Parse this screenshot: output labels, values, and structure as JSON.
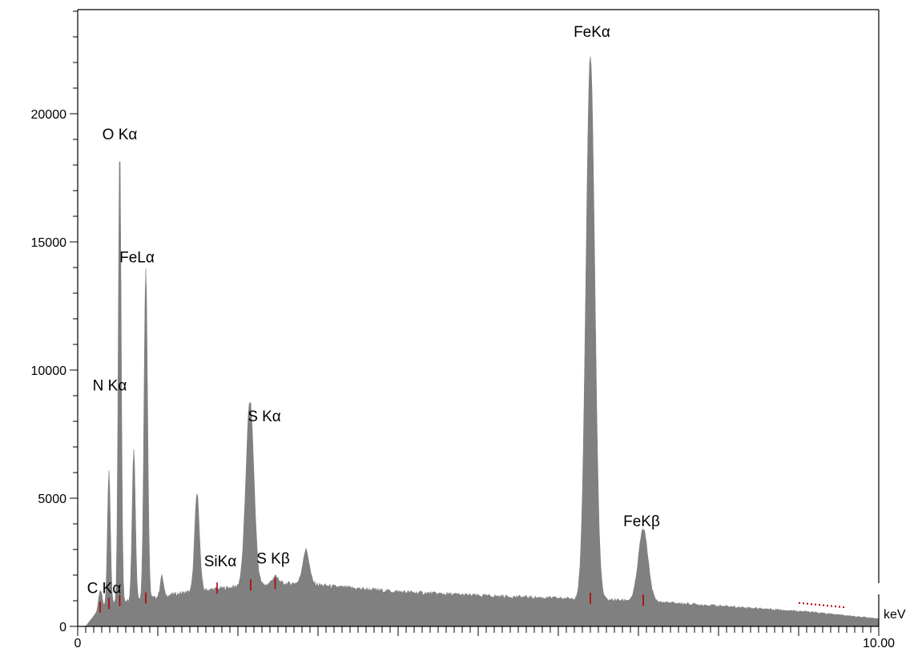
{
  "chart_data": {
    "type": "area",
    "title": "",
    "xlabel": "keV",
    "ylabel": "",
    "xlim": [
      0,
      10
    ],
    "ylim": [
      0,
      24000
    ],
    "grid": false,
    "legend": "none",
    "colors": {
      "fill": "#808080",
      "axis": "#000000",
      "marker": "#b00000"
    },
    "y_ticks": [
      {
        "value": 0,
        "label": "0"
      },
      {
        "value": 5000,
        "label": "5000"
      },
      {
        "value": 10000,
        "label": "10000"
      },
      {
        "value": 15000,
        "label": "15000"
      },
      {
        "value": 20000,
        "label": "20000"
      }
    ],
    "x_ticks": [
      {
        "value": 0,
        "label": "0"
      },
      {
        "value": 10,
        "label": "10.00"
      }
    ],
    "x_minor_step": 0.1,
    "x_major_step": 1,
    "y_minor_step": 1000,
    "continuum": [
      [
        0.1,
        0
      ],
      [
        0.2,
        400
      ],
      [
        0.3,
        800
      ],
      [
        0.45,
        900
      ],
      [
        0.55,
        1000
      ],
      [
        0.8,
        1050
      ],
      [
        1.0,
        1150
      ],
      [
        1.2,
        1250
      ],
      [
        1.4,
        1350
      ],
      [
        1.7,
        1450
      ],
      [
        2.0,
        1550
      ],
      [
        2.5,
        1650
      ],
      [
        2.8,
        1700
      ],
      [
        3.2,
        1550
      ],
      [
        4.0,
        1350
      ],
      [
        5.0,
        1200
      ],
      [
        6.0,
        1100
      ],
      [
        7.0,
        1000
      ],
      [
        8.0,
        800
      ],
      [
        9.0,
        600
      ],
      [
        9.5,
        450
      ],
      [
        10.0,
        300
      ]
    ],
    "peaks": [
      {
        "center": 0.28,
        "height": 700,
        "width": 0.02,
        "label": "C Kα"
      },
      {
        "center": 0.39,
        "height": 5200,
        "width": 0.018,
        "label": "N Kα"
      },
      {
        "center": 0.525,
        "height": 17800,
        "width": 0.018,
        "label": "O Kα"
      },
      {
        "center": 0.7,
        "height": 5900,
        "width": 0.02,
        "label": ""
      },
      {
        "center": 0.85,
        "height": 12900,
        "width": 0.022,
        "label": "FeLα"
      },
      {
        "center": 1.05,
        "height": 800,
        "width": 0.02,
        "label": ""
      },
      {
        "center": 1.49,
        "height": 3800,
        "width": 0.03,
        "label": "SiKα"
      },
      {
        "center": 2.15,
        "height": 7200,
        "width": 0.05,
        "label": "S Kα"
      },
      {
        "center": 2.465,
        "height": 300,
        "width": 0.04,
        "label": "S Kβ"
      },
      {
        "center": 2.85,
        "height": 1300,
        "width": 0.04,
        "label": ""
      },
      {
        "center": 6.4,
        "height": 21200,
        "width": 0.055,
        "label": "FeKα"
      },
      {
        "center": 7.06,
        "height": 2800,
        "width": 0.06,
        "label": "FeKβ"
      }
    ],
    "annotations": [
      {
        "text": "O Kα",
        "x": 0.525,
        "y": 19000
      },
      {
        "text": "FeLα",
        "x": 0.74,
        "y": 14200
      },
      {
        "text": "N Kα",
        "x": 0.4,
        "y": 9200
      },
      {
        "text": "S Kα",
        "x": 2.33,
        "y": 8000
      },
      {
        "text": "SiKα",
        "x": 1.78,
        "y": 2350
      },
      {
        "text": "S Kβ",
        "x": 2.44,
        "y": 2450
      },
      {
        "text": "C Kα",
        "x": 0.33,
        "y": 1300
      },
      {
        "text": "FeKα",
        "x": 6.42,
        "y": 23000
      },
      {
        "text": "FeKβ",
        "x": 7.04,
        "y": 3900
      }
    ],
    "markers": [
      0.28,
      0.39,
      0.525,
      0.85,
      1.74,
      2.16,
      2.465,
      6.4,
      7.06
    ]
  }
}
